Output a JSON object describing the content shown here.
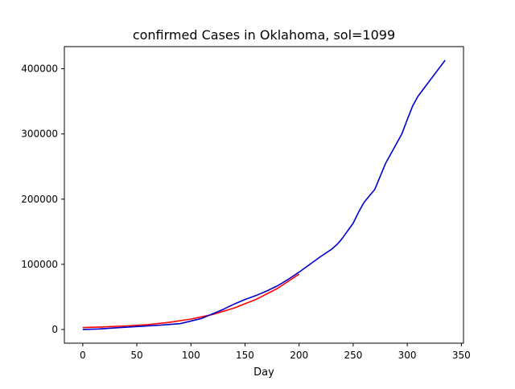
{
  "chart_data": {
    "type": "line",
    "title": "confirmed Cases in Oklahoma, sol=1099",
    "xlabel": "Day",
    "ylabel": "",
    "xlim": [
      -17,
      352
    ],
    "ylim": [
      -21000,
      434000
    ],
    "xticks": [
      0,
      50,
      100,
      150,
      200,
      250,
      300,
      350
    ],
    "yticks": [
      0,
      100000,
      200000,
      300000,
      400000
    ],
    "xtick_labels": [
      "0",
      "50",
      "100",
      "150",
      "200",
      "250",
      "300",
      "350"
    ],
    "ytick_labels": [
      "0",
      "100000",
      "200000",
      "300000",
      "400000"
    ],
    "grid": false,
    "series": [
      {
        "color": "#ff0000",
        "x": [
          0,
          20,
          40,
          60,
          80,
          100,
          120,
          140,
          160,
          180,
          200
        ],
        "y": [
          3000,
          4000,
          5500,
          7500,
          11000,
          16000,
          23000,
          33000,
          46000,
          63000,
          85000
        ]
      },
      {
        "color": "#0000cd",
        "x": [
          0,
          15,
          30,
          50,
          70,
          90,
          100,
          110,
          120,
          130,
          140,
          150,
          160,
          170,
          180,
          190,
          200,
          210,
          220,
          230,
          236,
          240,
          250,
          255,
          260,
          270,
          280,
          290,
          295,
          300,
          305,
          310,
          320,
          330,
          335
        ],
        "y": [
          0,
          800,
          2500,
          4500,
          6500,
          9000,
          13000,
          17000,
          24000,
          31000,
          39000,
          46000,
          52000,
          59000,
          67000,
          77000,
          88000,
          100000,
          112000,
          123000,
          132000,
          140000,
          163000,
          180000,
          195000,
          215000,
          255000,
          285000,
          300000,
          322000,
          343000,
          358000,
          380000,
          402000,
          413000
        ]
      }
    ]
  }
}
